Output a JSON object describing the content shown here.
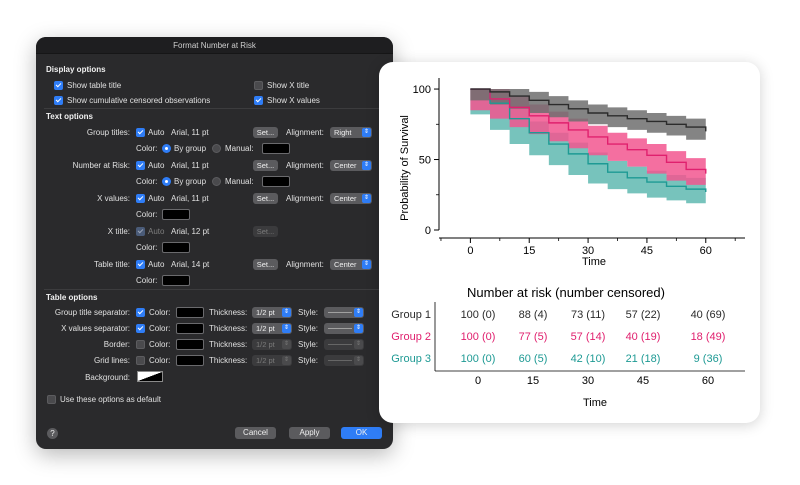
{
  "dialog": {
    "title": "Format Number at Risk",
    "display_options": {
      "heading": "Display options",
      "show_table_title": {
        "label": "Show table title",
        "checked": true
      },
      "show_x_title": {
        "label": "Show X title",
        "checked": false
      },
      "show_cumulative": {
        "label": "Show cumulative censored observations",
        "checked": true
      },
      "show_x_values": {
        "label": "Show X values",
        "checked": true
      }
    },
    "text_options": {
      "heading": "Text options",
      "auto_label": "Auto",
      "color_label": "Color:",
      "by_group_label": "By group",
      "manual_label": "Manual:",
      "set_label": "Set...",
      "alignment_label": "Alignment:",
      "group_titles": {
        "label": "Group titles:",
        "font": "Arial, 11 pt",
        "alignment": "Right"
      },
      "number_at_risk": {
        "label": "Number at Risk:",
        "font": "Arial, 11 pt",
        "alignment": "Center"
      },
      "x_values": {
        "label": "X values:",
        "font": "Arial, 11 pt",
        "alignment": "Center"
      },
      "x_title": {
        "label": "X title:",
        "font": "Arial, 12 pt"
      },
      "table_title": {
        "label": "Table title:",
        "font": "Arial, 14 pt",
        "alignment": "Center"
      }
    },
    "table_options": {
      "heading": "Table options",
      "color_label": "Color:",
      "thickness_label": "Thickness:",
      "style_label": "Style:",
      "group_title_separator": {
        "label": "Group title separator:",
        "thickness": "1/2 pt"
      },
      "x_values_separator": {
        "label": "X values separator:",
        "thickness": "1/2 pt"
      },
      "border": {
        "label": "Border:",
        "thickness": "1/2 pt"
      },
      "grid_lines": {
        "label": "Grid lines:",
        "thickness": "1/2 pt"
      },
      "background_label": "Background:"
    },
    "use_default_label": "Use these options as default",
    "help_label": "?",
    "cancel_label": "Cancel",
    "apply_label": "Apply",
    "ok_label": "OK"
  },
  "colors": {
    "group1": "#2b2b2b",
    "group2": "#e0206e",
    "group3": "#1e9a94",
    "group1_band": "#6e6e6e",
    "group2_band": "#f2568f",
    "group3_band": "#5fb8b0",
    "accent": "#2f7df6"
  },
  "chart_data": {
    "type": "line",
    "ylabel": "Probability of Survival",
    "xlabel": "Time",
    "x_ticks": [
      "0",
      "15",
      "30",
      "45",
      "60"
    ],
    "y_ticks": [
      "0",
      "50",
      "100"
    ],
    "xlim": [
      -8,
      70
    ],
    "ylim": [
      0,
      105
    ],
    "series": [
      {
        "x": [
          0,
          5,
          10,
          15,
          20,
          25,
          30,
          35,
          40,
          45,
          50,
          55,
          60
        ],
        "y": [
          100,
          98,
          95,
          92,
          89,
          86,
          83,
          81,
          79,
          77,
          75,
          73,
          70
        ],
        "band": 6
      },
      {
        "x": [
          0,
          5,
          10,
          15,
          20,
          25,
          30,
          35,
          40,
          45,
          50,
          55,
          60
        ],
        "y": [
          100,
          93,
          87,
          81,
          76,
          71,
          66,
          61,
          57,
          53,
          48,
          43,
          40
        ],
        "band": 8
      },
      {
        "x": [
          0,
          5,
          10,
          15,
          20,
          25,
          30,
          35,
          40,
          45,
          50,
          55,
          60
        ],
        "y": [
          100,
          90,
          79,
          69,
          61,
          54,
          47,
          41,
          37,
          34,
          31,
          29,
          27
        ],
        "band": 8
      }
    ]
  },
  "risk_table": {
    "title": "Number at risk (number censored)",
    "xlabel": "Time",
    "times": [
      "0",
      "15",
      "30",
      "45",
      "60"
    ],
    "groups": [
      {
        "name": "Group 1",
        "values": [
          "100 (0)",
          "88 (4)",
          "73 (11)",
          "57 (22)",
          "40 (69)"
        ]
      },
      {
        "name": "Group 2",
        "values": [
          "100 (0)",
          "77 (5)",
          "57 (14)",
          "40 (19)",
          "18 (49)"
        ]
      },
      {
        "name": "Group 3",
        "values": [
          "100 (0)",
          "60 (5)",
          "42 (10)",
          "21 (18)",
          "9 (36)"
        ]
      }
    ]
  }
}
